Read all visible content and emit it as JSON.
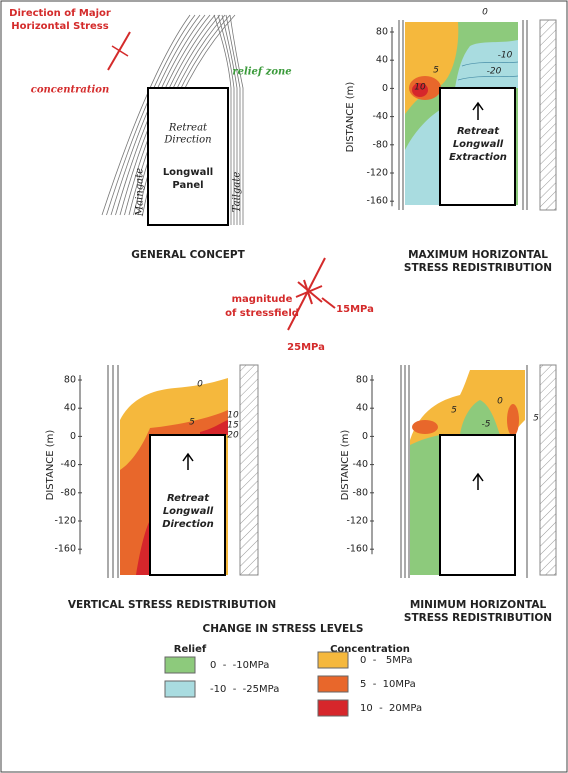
{
  "general_concept": {
    "stress_direction": [
      "Direction of Major",
      "Horizontal Stress"
    ],
    "concentration": "concentration",
    "relief_zone": "relief zone",
    "retreat": [
      "Retreat",
      "Direction"
    ],
    "panel": [
      "Longwall",
      "Panel"
    ],
    "maingate": "Maingate",
    "tailgate": "Tailgate",
    "caption": "GENERAL CONCEPT"
  },
  "max_horizontal": {
    "axis_label": "DISTANCE (m)",
    "yticks": [
      "80",
      "40",
      "0",
      "-40",
      "-80",
      "-120",
      "-160"
    ],
    "contours": [
      "0",
      "-10",
      "-20",
      "5",
      "10"
    ],
    "panel": [
      "Retreat",
      "Longwall",
      "Extraction"
    ],
    "caption": [
      "MAXIMUM HORIZONTAL",
      "STRESS REDISTRIBUTION"
    ]
  },
  "magnitude": {
    "label": [
      "magnitude",
      "of stressfield"
    ],
    "small": "15MPa",
    "large": "25MPa"
  },
  "vertical": {
    "axis_label": "DISTANCE (m)",
    "yticks": [
      "80",
      "40",
      "0",
      "-40",
      "-80",
      "-120",
      "-160"
    ],
    "contours": [
      "0",
      "5",
      "10",
      "15",
      "20"
    ],
    "panel": [
      "Retreat",
      "Longwall",
      "Direction"
    ],
    "caption": "VERTICAL STRESS REDISTRIBUTION"
  },
  "min_horizontal": {
    "axis_label": "DISTANCE (m)",
    "yticks": [
      "80",
      "40",
      "0",
      "-40",
      "-80",
      "-120",
      "-160"
    ],
    "contours": [
      "5",
      "0",
      "-5",
      "5"
    ],
    "caption": [
      "MINIMUM HORIZONTAL",
      "STRESS REDISTRIBUTION"
    ]
  },
  "legend": {
    "title": "CHANGE IN STRESS LEVELS",
    "relief": {
      "title": "Relief",
      "items": [
        {
          "label": "0  -  -10MPa",
          "color": "#8dca7c"
        },
        {
          "label": "-10  -  -25MPa",
          "color": "#a9dce0"
        }
      ]
    },
    "concentration": {
      "title": "Concentration",
      "items": [
        {
          "label": "0  -   5MPa",
          "color": "#f5b83d"
        },
        {
          "label": "5  -  10MPa",
          "color": "#e8672b"
        },
        {
          "label": "10  -  20MPa",
          "color": "#d6262b"
        }
      ]
    }
  }
}
